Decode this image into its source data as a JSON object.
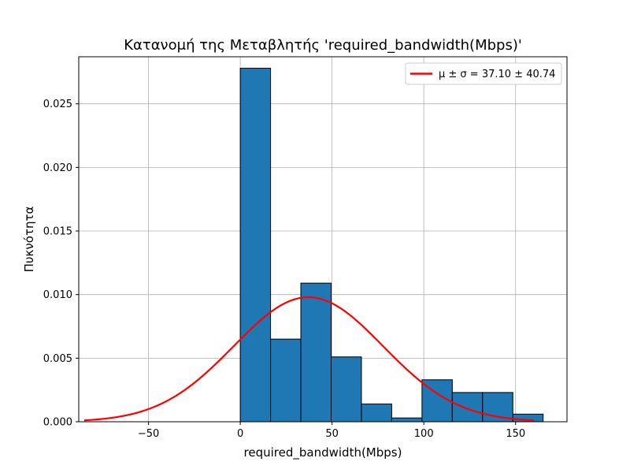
{
  "chart_data": {
    "type": "bar",
    "title": "Κατανομή της Μεταβλητής 'required_bandwidth(Mbps)'",
    "xlabel": "required_bandwidth(Mbps)",
    "ylabel": "Πυκνότητα",
    "xlim": [
      -88,
      178
    ],
    "ylim": [
      0,
      0.0287
    ],
    "x_ticks": [
      -50,
      0,
      50,
      100,
      150
    ],
    "x_tick_labels": [
      "−50",
      "0",
      "50",
      "100",
      "150"
    ],
    "y_ticks": [
      0,
      0.005,
      0.01,
      0.015,
      0.02,
      0.025
    ],
    "y_tick_labels": [
      "0.000",
      "0.005",
      "0.010",
      "0.015",
      "0.020",
      "0.025"
    ],
    "grid": true,
    "legend_position": "top-right",
    "histogram": {
      "bin_edges": [
        0,
        16.5,
        33,
        49.5,
        66,
        82.5,
        99,
        115.5,
        132,
        148.5,
        165
      ],
      "densities": [
        0.0278,
        0.0065,
        0.0109,
        0.0051,
        0.0014,
        0.0003,
        0.0033,
        0.0023,
        0.0023,
        0.0006
      ],
      "color": "#1f77b4",
      "edgecolor": "#000000"
    },
    "normal_fit": {
      "name": "μ ± σ = 37.10 ± 40.74",
      "mu": 37.1,
      "sigma": 40.74,
      "x_range": [
        -85,
        160
      ],
      "color": "#ff0000"
    }
  }
}
